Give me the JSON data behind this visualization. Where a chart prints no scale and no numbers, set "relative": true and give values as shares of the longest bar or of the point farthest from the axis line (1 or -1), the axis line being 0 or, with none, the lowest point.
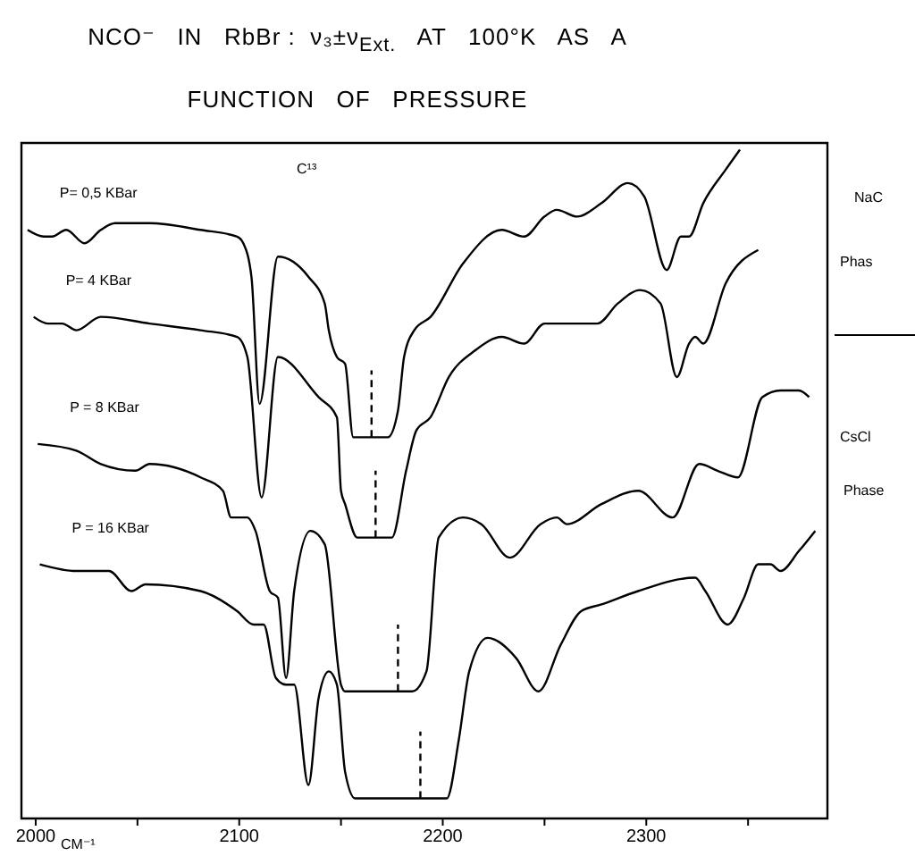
{
  "chart_data": {
    "type": "line",
    "title": "NCO⁻   IN   RbBr :  ν₃±ν$_{Ext.}$   AT   100°K   AS   A   FUNCTION   OF   PRESSURE",
    "xlabel": "CM⁻¹",
    "relative": true,
    "marker": "none",
    "xlim": [
      1993,
      2389
    ],
    "xticks": [
      2000,
      {
        "value": 2050,
        "label": null
      },
      2100,
      {
        "value": 2150,
        "label": null
      },
      2200,
      {
        "value": 2250,
        "label": null
      },
      2300,
      {
        "value": 2350,
        "label": null
      }
    ],
    "series": [
      {
        "name": "P= 0,5 KBar",
        "color": "#000000",
        "x": [
          1996,
          2004,
          2008,
          2015,
          2024,
          2032,
          2039,
          2056,
          2081,
          2099,
          2102,
          2106,
          2110,
          2119,
          2134,
          2142,
          2144,
          2148,
          2152,
          2156,
          2173,
          2178,
          2181,
          2186,
          2194,
          2210,
          2229,
          2240,
          2250,
          2256,
          2266,
          2278,
          2291,
          2299,
          2310,
          2317,
          2321,
          2328,
          2339,
          2346
        ],
        "values": [
          0.88,
          0.87,
          0.87,
          0.88,
          0.86,
          0.88,
          0.89,
          0.89,
          0.88,
          0.87,
          0.86,
          0.81,
          0.62,
          0.84,
          0.81,
          0.77,
          0.73,
          0.69,
          0.68,
          0.57,
          0.57,
          0.61,
          0.69,
          0.73,
          0.75,
          0.83,
          0.88,
          0.87,
          0.9,
          0.91,
          0.9,
          0.92,
          0.95,
          0.93,
          0.82,
          0.87,
          0.87,
          0.92,
          0.97,
          1.0
        ]
      },
      {
        "name": "P= 4 KBar",
        "color": "#000000",
        "x": [
          1999,
          2006,
          2013,
          2020,
          2032,
          2056,
          2081,
          2099,
          2104,
          2111,
          2119,
          2139,
          2148,
          2150,
          2152,
          2158,
          2175,
          2182,
          2187,
          2194,
          2203,
          2216,
          2229,
          2240,
          2250,
          2265,
          2276,
          2286,
          2297,
          2307,
          2315,
          2321,
          2324,
          2328,
          2339,
          2355
        ],
        "values": [
          0.75,
          0.74,
          0.74,
          0.73,
          0.75,
          0.74,
          0.73,
          0.72,
          0.69,
          0.48,
          0.69,
          0.63,
          0.6,
          0.49,
          0.47,
          0.42,
          0.42,
          0.52,
          0.58,
          0.6,
          0.66,
          0.7,
          0.72,
          0.71,
          0.74,
          0.74,
          0.74,
          0.77,
          0.79,
          0.77,
          0.66,
          0.71,
          0.72,
          0.71,
          0.8,
          0.85
        ]
      },
      {
        "name": "P = 8 KBar",
        "color": "#000000",
        "x": [
          2001,
          2020,
          2032,
          2049,
          2056,
          2081,
          2092,
          2096,
          2104,
          2108,
          2115,
          2119,
          2123,
          2127,
          2135,
          2142,
          2150,
          2152,
          2185,
          2192,
          2198,
          2210,
          2219,
          2233,
          2248,
          2256,
          2261,
          2278,
          2296,
          2313,
          2326,
          2335,
          2345,
          2357,
          2366,
          2375,
          2380
        ],
        "values": [
          0.56,
          0.55,
          0.53,
          0.52,
          0.53,
          0.51,
          0.49,
          0.45,
          0.45,
          0.43,
          0.34,
          0.33,
          0.21,
          0.34,
          0.43,
          0.41,
          0.2,
          0.19,
          0.19,
          0.22,
          0.42,
          0.45,
          0.44,
          0.39,
          0.44,
          0.45,
          0.44,
          0.47,
          0.49,
          0.45,
          0.53,
          0.52,
          0.51,
          0.63,
          0.64,
          0.64,
          0.63
        ]
      },
      {
        "name": "P = 16 KBar",
        "color": "#000000",
        "x": [
          2002,
          2020,
          2036,
          2047,
          2054,
          2081,
          2099,
          2107,
          2112,
          2118,
          2123,
          2127,
          2134,
          2139,
          2144,
          2148,
          2152,
          2157,
          2202,
          2208,
          2213,
          2222,
          2236,
          2247,
          2258,
          2268,
          2278,
          2296,
          2324,
          2329,
          2340,
          2348,
          2355,
          2361,
          2366,
          2375,
          2383
        ],
        "values": [
          0.38,
          0.37,
          0.37,
          0.34,
          0.35,
          0.34,
          0.31,
          0.29,
          0.29,
          0.21,
          0.2,
          0.2,
          0.05,
          0.18,
          0.22,
          0.2,
          0.07,
          0.03,
          0.03,
          0.12,
          0.22,
          0.27,
          0.24,
          0.19,
          0.26,
          0.31,
          0.32,
          0.34,
          0.36,
          0.34,
          0.29,
          0.33,
          0.38,
          0.38,
          0.37,
          0.4,
          0.43
        ]
      }
    ],
    "ref_lines": [
      {
        "axis": "x",
        "value": 2165,
        "line_style": "dashed"
      },
      {
        "axis": "x",
        "value": 2167,
        "line_style": "dashed"
      },
      {
        "axis": "x",
        "value": 2178,
        "line_style": "dashed"
      },
      {
        "axis": "x",
        "value": 2189,
        "line_style": "dashed"
      }
    ],
    "annotations": [
      "C¹³",
      "NaC",
      "Phas",
      "CsCl",
      "Phase"
    ]
  }
}
